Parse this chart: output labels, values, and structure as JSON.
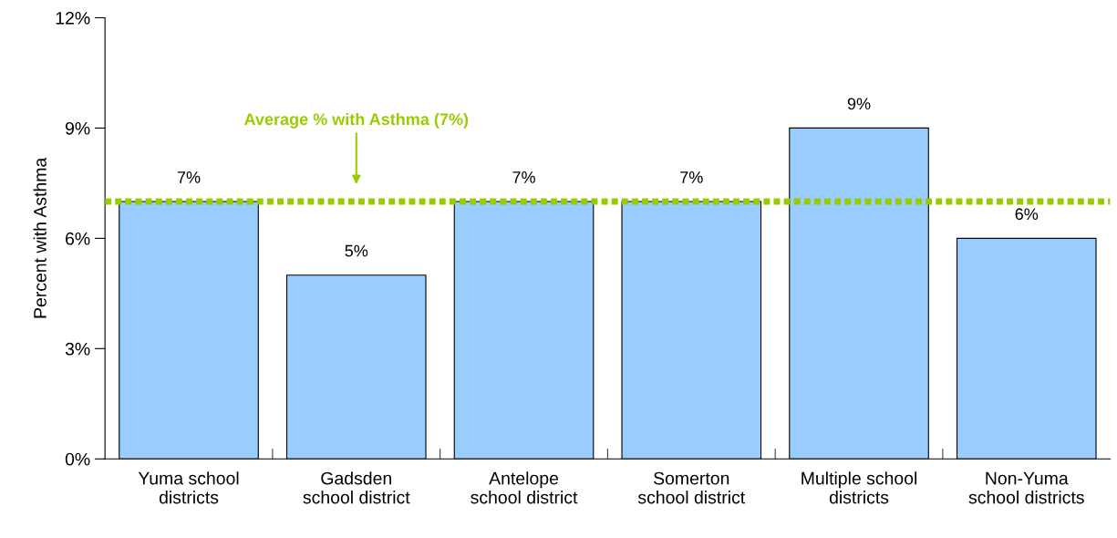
{
  "chart_data": {
    "type": "bar",
    "ylabel": "Percent with Asthma",
    "categories": [
      "Yuma school\ndistricts",
      "Gadsden\nschool district",
      "Antelope\nschool district",
      "Somerton\nschool district",
      "Multiple school\ndistricts",
      "Non-Yuma\nschool districts"
    ],
    "values": [
      7,
      5,
      7,
      7,
      9,
      6
    ],
    "value_labels": [
      "7%",
      "5%",
      "7%",
      "7%",
      "9%",
      "6%"
    ],
    "color": "#99ccff",
    "ylim": [
      0,
      12
    ],
    "yticks": [
      {
        "value": 0,
        "label": "0%"
      },
      {
        "value": 3,
        "label": "3%"
      },
      {
        "value": 6,
        "label": "6%"
      },
      {
        "value": 9,
        "label": "9%"
      },
      {
        "value": 12,
        "label": "12%"
      }
    ],
    "ref_lines": [
      {
        "axis": "y",
        "value": 7,
        "label": "Average % with Asthma (7%)",
        "color": "#99cc00",
        "line_style": "dotted"
      }
    ],
    "grid": false,
    "legend": false
  }
}
